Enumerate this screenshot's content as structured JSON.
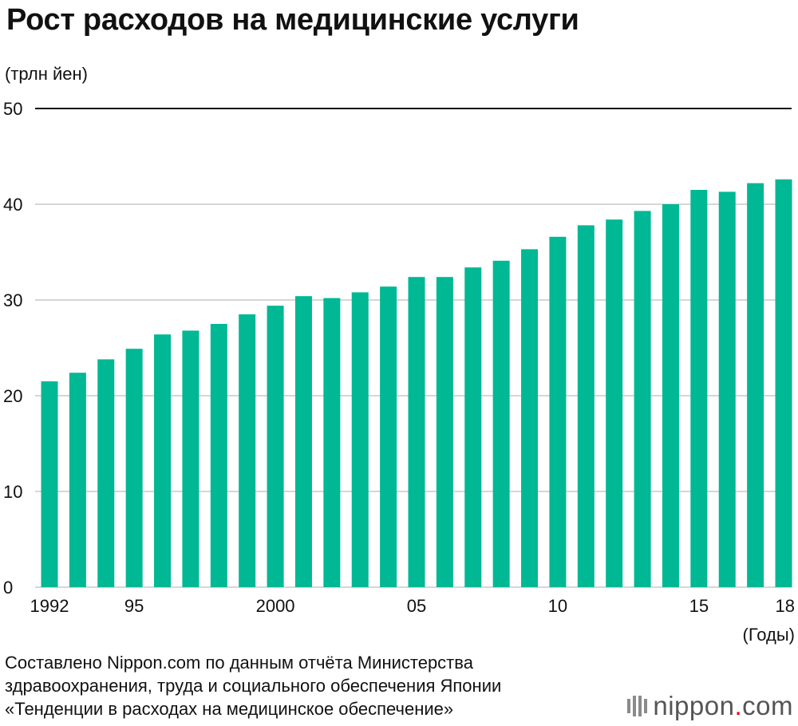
{
  "title": "Рост расходов на медицинские услуги",
  "source_lines": [
    "Составлено Nippon.com по данным отчёта Министерства",
    "здравоохранения, труда и социального обеспечения Японии",
    "«Тенденции в расходах на медицинское обеспечение»"
  ],
  "logo": {
    "name": "nippon",
    "dot": ".",
    "tld": "com"
  },
  "colors": {
    "bar": "#00b894",
    "grid": "#c8c8c8",
    "top_line": "#111111",
    "text": "#111111"
  },
  "chart_data": {
    "type": "bar",
    "ylabel": "(трлн йен)",
    "xlabel": "(Годы)",
    "ylim": [
      0,
      50
    ],
    "yticks": [
      0,
      10,
      20,
      30,
      40,
      50
    ],
    "grid": true,
    "categories": [
      "1992",
      "1993",
      "1994",
      "1995",
      "1996",
      "1997",
      "1998",
      "1999",
      "2000",
      "2001",
      "2002",
      "2003",
      "2004",
      "2005",
      "2006",
      "2007",
      "2008",
      "2009",
      "2010",
      "2011",
      "2012",
      "2013",
      "2014",
      "2015",
      "2016",
      "2017",
      "2018"
    ],
    "xtick_labels": [
      {
        "category": "1992",
        "label": "1992"
      },
      {
        "category": "1995",
        "label": "95"
      },
      {
        "category": "2000",
        "label": "2000"
      },
      {
        "category": "2005",
        "label": "05"
      },
      {
        "category": "2010",
        "label": "10"
      },
      {
        "category": "2015",
        "label": "15"
      },
      {
        "category": "2018",
        "label": "18"
      }
    ],
    "values": [
      21.5,
      22.4,
      23.8,
      24.9,
      26.4,
      26.8,
      27.5,
      28.5,
      29.4,
      30.4,
      30.2,
      30.8,
      31.4,
      32.4,
      32.4,
      33.4,
      34.1,
      35.3,
      36.6,
      37.8,
      38.4,
      39.3,
      40.0,
      41.5,
      41.3,
      42.2,
      42.6
    ]
  }
}
